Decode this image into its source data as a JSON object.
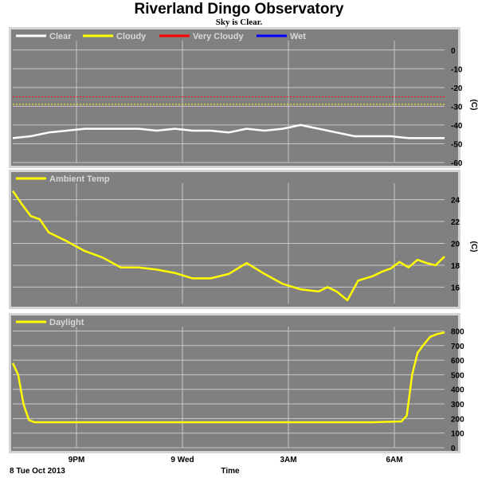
{
  "title": "Riverland Dingo Observatory",
  "subtitle": "Sky is Clear.",
  "colors": {
    "panel_bg": "#808080",
    "grid": "#c8c8c8",
    "clear": "#ffffff",
    "cloudy": "#ffff00",
    "very_cloudy": "#ff0000",
    "wet": "#0000ff",
    "frame": "#d4d4d4"
  },
  "chart_data": [
    {
      "type": "line",
      "panel": "sky",
      "yunit": "(C)",
      "ylim": [
        -60,
        5
      ],
      "yticks": [
        0,
        -10,
        -20,
        -30,
        -40,
        -50,
        -60
      ],
      "xticks": [
        "9PM",
        "9 Wed",
        "3AM",
        "6AM"
      ],
      "legend": [
        "Clear",
        "Cloudy",
        "Very Cloudy",
        "Wet"
      ],
      "thresholds": [
        {
          "name": "Very Cloudy",
          "value": -25,
          "color": "#ff0000"
        },
        {
          "name": "Cloudy",
          "value": -29,
          "color": "#ffff00"
        }
      ],
      "series": [
        {
          "name": "Clear",
          "color": "#ffffff",
          "x": [
            0,
            0.5,
            1,
            1.5,
            2,
            2.5,
            3,
            3.5,
            4,
            4.5,
            5,
            5.5,
            6,
            6.5,
            7,
            7.5,
            8,
            8.5,
            9,
            9.5,
            10,
            10.5,
            11,
            11.5,
            12
          ],
          "y": [
            -47,
            -46,
            -44,
            -43,
            -42,
            -42,
            -42,
            -42,
            -43,
            -42,
            -43,
            -43,
            -44,
            -42,
            -43,
            -42,
            -40,
            -42,
            -44,
            -46,
            -46,
            -46,
            -47,
            -47,
            -47
          ]
        }
      ]
    },
    {
      "type": "line",
      "panel": "ambient",
      "yunit": "(C)",
      "ylim": [
        14.5,
        25.5
      ],
      "yticks": [
        16,
        18,
        20,
        22,
        24
      ],
      "xticks": [
        "9PM",
        "9 Wed",
        "3AM",
        "6AM"
      ],
      "legend": [
        "Ambient Temp"
      ],
      "series": [
        {
          "name": "Ambient Temp",
          "color": "#ffff00",
          "x": [
            0,
            0.25,
            0.5,
            0.75,
            1,
            1.5,
            2,
            2.5,
            3,
            3.5,
            4,
            4.5,
            5,
            5.5,
            6,
            6.5,
            7,
            7.5,
            8,
            8.5,
            8.75,
            9,
            9.3,
            9.6,
            10,
            10.25,
            10.5,
            10.75,
            11,
            11.25,
            11.5,
            11.75,
            12
          ],
          "y": [
            24.8,
            23.6,
            22.5,
            22.2,
            21.0,
            20.2,
            19.3,
            18.7,
            17.8,
            17.8,
            17.6,
            17.3,
            16.8,
            16.8,
            17.2,
            18.2,
            17.2,
            16.3,
            15.8,
            15.6,
            16.0,
            15.6,
            14.8,
            16.6,
            17.0,
            17.4,
            17.7,
            18.3,
            17.8,
            18.5,
            18.2,
            18.0,
            18.8
          ]
        }
      ]
    },
    {
      "type": "line",
      "panel": "daylight",
      "ylim": [
        0,
        830
      ],
      "yticks": [
        0,
        100,
        200,
        300,
        400,
        500,
        600,
        700,
        800
      ],
      "xticks": [
        "9PM",
        "9 Wed",
        "3AM",
        "6AM"
      ],
      "legend": [
        "Daylight"
      ],
      "series": [
        {
          "name": "Daylight",
          "color": "#ffff00",
          "x": [
            0,
            0.15,
            0.3,
            0.45,
            0.6,
            0.8,
            1,
            2,
            3,
            4,
            5,
            6,
            7,
            8,
            9,
            10,
            10.8,
            10.95,
            11.1,
            11.25,
            11.4,
            11.6,
            11.8,
            12
          ],
          "y": [
            580,
            500,
            300,
            190,
            175,
            175,
            175,
            175,
            175,
            175,
            175,
            175,
            175,
            175,
            175,
            175,
            180,
            220,
            500,
            650,
            700,
            760,
            780,
            790
          ]
        }
      ]
    }
  ],
  "time_axis": {
    "date_label": "8 Tue Oct 2013",
    "title": "Time"
  }
}
